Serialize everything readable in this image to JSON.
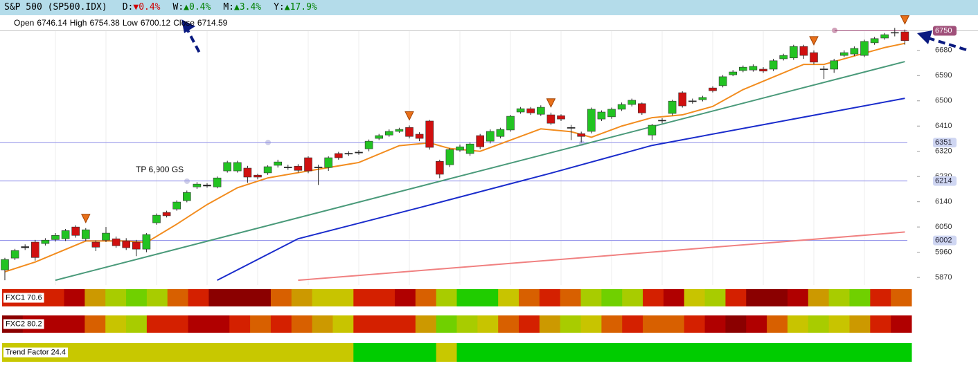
{
  "header": {
    "symbol": "S&P 500 (SP500.IDX)",
    "changes": [
      {
        "label": "D:",
        "value": "▼0.4%",
        "color": "#d00000"
      },
      {
        "label": "W:",
        "value": "▲0.4%",
        "color": "#008000"
      },
      {
        "label": "M:",
        "value": "▲3.4%",
        "color": "#008000"
      },
      {
        "label": "Y:",
        "value": "▲17.9%",
        "color": "#008000"
      }
    ]
  },
  "ohlc_legend": [
    {
      "label": "Open",
      "value": 6746.14
    },
    {
      "label": "High",
      "value": 6754.38
    },
    {
      "label": "Low",
      "value": 6700.12
    },
    {
      "label": "Close",
      "value": 6714.59
    }
  ],
  "chart_data": {
    "type": "candlestick",
    "up_color": "#22c322",
    "down_color": "#d01010",
    "candles": [
      [
        5897,
        5940,
        5860,
        5934
      ],
      [
        5939,
        5972,
        5932,
        5966
      ],
      [
        5976,
        5988,
        5968,
        5980
      ],
      [
        5996,
        6004,
        5930,
        5941
      ],
      [
        5991,
        6010,
        5984,
        6003
      ],
      [
        6005,
        6028,
        5998,
        6020
      ],
      [
        6008,
        6043,
        6000,
        6037
      ],
      [
        6050,
        6056,
        6012,
        6020
      ],
      [
        6008,
        6046,
        6000,
        6040
      ],
      [
        5996,
        6002,
        5964,
        5978
      ],
      [
        6003,
        6050,
        5996,
        6028
      ],
      [
        6008,
        6016,
        5976,
        5983
      ],
      [
        6000,
        6010,
        5968,
        5976
      ],
      [
        5996,
        6004,
        5946,
        5971
      ],
      [
        5971,
        6028,
        5960,
        6023
      ],
      [
        6065,
        6098,
        6058,
        6092
      ],
      [
        6102,
        6108,
        6084,
        6090
      ],
      [
        6114,
        6145,
        6108,
        6139
      ],
      [
        6144,
        6180,
        6138,
        6173
      ],
      [
        6193,
        6210,
        6186,
        6203
      ],
      [
        6196,
        6206,
        6190,
        6200
      ],
      [
        6193,
        6230,
        6188,
        6225
      ],
      [
        6250,
        6286,
        6244,
        6280
      ],
      [
        6250,
        6286,
        6244,
        6280
      ],
      [
        6260,
        6268,
        6208,
        6228
      ],
      [
        6235,
        6240,
        6220,
        6228
      ],
      [
        6243,
        6270,
        6236,
        6265
      ],
      [
        6270,
        6290,
        6262,
        6282
      ],
      [
        6261,
        6272,
        6254,
        6264
      ],
      [
        6267,
        6274,
        6244,
        6252
      ],
      [
        6297,
        6302,
        6242,
        6250
      ],
      [
        6264,
        6272,
        6200,
        6261
      ],
      [
        6262,
        6302,
        6250,
        6297
      ],
      [
        6312,
        6318,
        6290,
        6297
      ],
      [
        6310,
        6320,
        6304,
        6313
      ],
      [
        6314,
        6324,
        6308,
        6317
      ],
      [
        6329,
        6362,
        6320,
        6356
      ],
      [
        6366,
        6382,
        6360,
        6376
      ],
      [
        6378,
        6398,
        6372,
        6391
      ],
      [
        6391,
        6404,
        6386,
        6398
      ],
      [
        6405,
        6412,
        6366,
        6373
      ],
      [
        6381,
        6388,
        6356,
        6366
      ],
      [
        6428,
        6432,
        6326,
        6334
      ],
      [
        6284,
        6290,
        6224,
        6238
      ],
      [
        6272,
        6332,
        6264,
        6326
      ],
      [
        6324,
        6344,
        6318,
        6336
      ],
      [
        6312,
        6352,
        6304,
        6346
      ],
      [
        6376,
        6382,
        6328,
        6336
      ],
      [
        6356,
        6398,
        6348,
        6391
      ],
      [
        6373,
        6404,
        6366,
        6398
      ],
      [
        6396,
        6450,
        6390,
        6445
      ],
      [
        6460,
        6478,
        6454,
        6472
      ],
      [
        6472,
        6478,
        6450,
        6457
      ],
      [
        6452,
        6484,
        6446,
        6477
      ],
      [
        6450,
        6458,
        6414,
        6420
      ],
      [
        6447,
        6452,
        6428,
        6435
      ],
      [
        6405,
        6414,
        6360,
        6402
      ],
      [
        6383,
        6390,
        6352,
        6373
      ],
      [
        6391,
        6476,
        6384,
        6470
      ],
      [
        6435,
        6466,
        6428,
        6460
      ],
      [
        6443,
        6476,
        6436,
        6470
      ],
      [
        6470,
        6494,
        6464,
        6487
      ],
      [
        6487,
        6508,
        6480,
        6502
      ],
      [
        6490,
        6494,
        6450,
        6457
      ],
      [
        6378,
        6418,
        6360,
        6413
      ],
      [
        6428,
        6438,
        6420,
        6431
      ],
      [
        6455,
        6504,
        6448,
        6499
      ],
      [
        6529,
        6534,
        6476,
        6482
      ],
      [
        6497,
        6508,
        6490,
        6500
      ],
      [
        6504,
        6518,
        6498,
        6512
      ],
      [
        6546,
        6552,
        6530,
        6536
      ],
      [
        6554,
        6592,
        6548,
        6586
      ],
      [
        6593,
        6610,
        6588,
        6603
      ],
      [
        6608,
        6626,
        6602,
        6620
      ],
      [
        6610,
        6630,
        6604,
        6623
      ],
      [
        6613,
        6620,
        6600,
        6606
      ],
      [
        6613,
        6650,
        6606,
        6643
      ],
      [
        6650,
        6668,
        6644,
        6662
      ],
      [
        6653,
        6700,
        6646,
        6694
      ],
      [
        6694,
        6700,
        6650,
        6662
      ],
      [
        6672,
        6680,
        6630,
        6638
      ],
      [
        6611,
        6625,
        6578,
        6614
      ],
      [
        6613,
        6650,
        6600,
        6643
      ],
      [
        6662,
        6680,
        6656,
        6672
      ],
      [
        6667,
        6694,
        6660,
        6687
      ],
      [
        6662,
        6718,
        6656,
        6712
      ],
      [
        6707,
        6728,
        6700,
        6722
      ],
      [
        6724,
        6742,
        6718,
        6736
      ],
      [
        6742,
        6760,
        6730,
        6744
      ],
      [
        6746,
        6754.38,
        6700.12,
        6714.59
      ]
    ],
    "lines": [
      {
        "color": "#f28c1e",
        "x": [
          0,
          3,
          8,
          12,
          14,
          17,
          20,
          23,
          26,
          30,
          35,
          39,
          42,
          44,
          47,
          50,
          53,
          56,
          58,
          61,
          64,
          67,
          70,
          73,
          76,
          79,
          81,
          84,
          87,
          89
        ],
        "y": [
          5890,
          5925,
          6000,
          6000,
          5995,
          6060,
          6130,
          6190,
          6225,
          6250,
          6280,
          6340,
          6350,
          6330,
          6320,
          6360,
          6400,
          6390,
          6370,
          6410,
          6440,
          6450,
          6480,
          6540,
          6585,
          6630,
          6630,
          6660,
          6690,
          6705
        ]
      },
      {
        "color": "#4a9a7a",
        "x": [
          5,
          89
        ],
        "y": [
          5860,
          6640
        ]
      },
      {
        "color": "#1a2ccc",
        "x": [
          21,
          29,
          41,
          54,
          64,
          75,
          89
        ],
        "y": [
          5860,
          6008,
          6119,
          6242,
          6341,
          6415,
          6509
        ]
      },
      {
        "color": "#f08080",
        "x": [
          29,
          89
        ],
        "y": [
          5860,
          6032
        ]
      }
    ],
    "levels": [
      {
        "value": 6750,
        "color": "#a0507a"
      },
      {
        "value": 6351,
        "color": "#8a8ae8"
      },
      {
        "value": 6214,
        "color": "#8a8ae8"
      },
      {
        "value": 6002,
        "color": "#8a8ae8"
      }
    ],
    "signals": [
      8,
      40,
      54,
      80,
      89
    ],
    "annotation": "TP 6,900 GS",
    "ylim": [
      5848,
      6761
    ],
    "yticks": [
      6680,
      6590,
      6500,
      6410,
      6320,
      6230,
      6140,
      6050,
      5960,
      5870
    ]
  },
  "indicators": [
    {
      "label": "FXC1 70.6",
      "colors": [
        "#d42000",
        "#d42000",
        "#d42000",
        "#b00000",
        "#cc9900",
        "#a8cc00",
        "#70d000",
        "#a8cc00",
        "#d86000",
        "#d42000",
        "#8b0000",
        "#8b0000",
        "#8b0000",
        "#d86000",
        "#cc9900",
        "#c8c400",
        "#c8c400",
        "#d42000",
        "#d42000",
        "#b00000",
        "#d86000",
        "#a8cc00",
        "#20cc00",
        "#20cc00",
        "#c8c400",
        "#d86000",
        "#d42000",
        "#d86000",
        "#a8cc00",
        "#70d000",
        "#a8cc00",
        "#d42000",
        "#b00000",
        "#c8c400",
        "#a8cc00",
        "#d42000",
        "#8b0000",
        "#8b0000",
        "#b00000",
        "#cc9900",
        "#a8cc00",
        "#70d000",
        "#d42000",
        "#d86000"
      ]
    },
    {
      "label": "FXC2 80.2",
      "colors": [
        "#8b0000",
        "#b00000",
        "#b00000",
        "#b00000",
        "#d86000",
        "#c8c400",
        "#a8cc00",
        "#d42000",
        "#d42000",
        "#b00000",
        "#b00000",
        "#d42000",
        "#d86000",
        "#d42000",
        "#d86000",
        "#cc9900",
        "#c8c400",
        "#d42000",
        "#d42000",
        "#d42000",
        "#cc9900",
        "#70d000",
        "#a8cc00",
        "#c8c400",
        "#d86000",
        "#d42000",
        "#cc9900",
        "#a8cc00",
        "#c8c400",
        "#d86000",
        "#d42000",
        "#d86000",
        "#d86000",
        "#d42000",
        "#b00000",
        "#8b0000",
        "#b00000",
        "#d86000",
        "#c8c400",
        "#a8cc00",
        "#c8c400",
        "#cc9900",
        "#d42000",
        "#b00000"
      ]
    },
    {
      "label": "Trend Factor 24.4",
      "colors": [
        "#c8c800",
        "#c8c800",
        "#c8c800",
        "#c8c800",
        "#c8c800",
        "#c8c800",
        "#c8c800",
        "#c8c800",
        "#c8c800",
        "#c8c800",
        "#c8c800",
        "#c8c800",
        "#c8c800",
        "#c8c800",
        "#c8c800",
        "#c8c800",
        "#c8c800",
        "#00cc00",
        "#00cc00",
        "#00cc00",
        "#00cc00",
        "#c8c800",
        "#00cc00",
        "#00cc00",
        "#00cc00",
        "#00cc00",
        "#00cc00",
        "#00cc00",
        "#00cc00",
        "#00cc00",
        "#00cc00",
        "#00cc00",
        "#00cc00",
        "#00cc00",
        "#00cc00",
        "#00cc00",
        "#00cc00",
        "#00cc00",
        "#00cc00",
        "#00cc00",
        "#00cc00",
        "#00cc00",
        "#00cc00",
        "#00cc00"
      ]
    }
  ]
}
